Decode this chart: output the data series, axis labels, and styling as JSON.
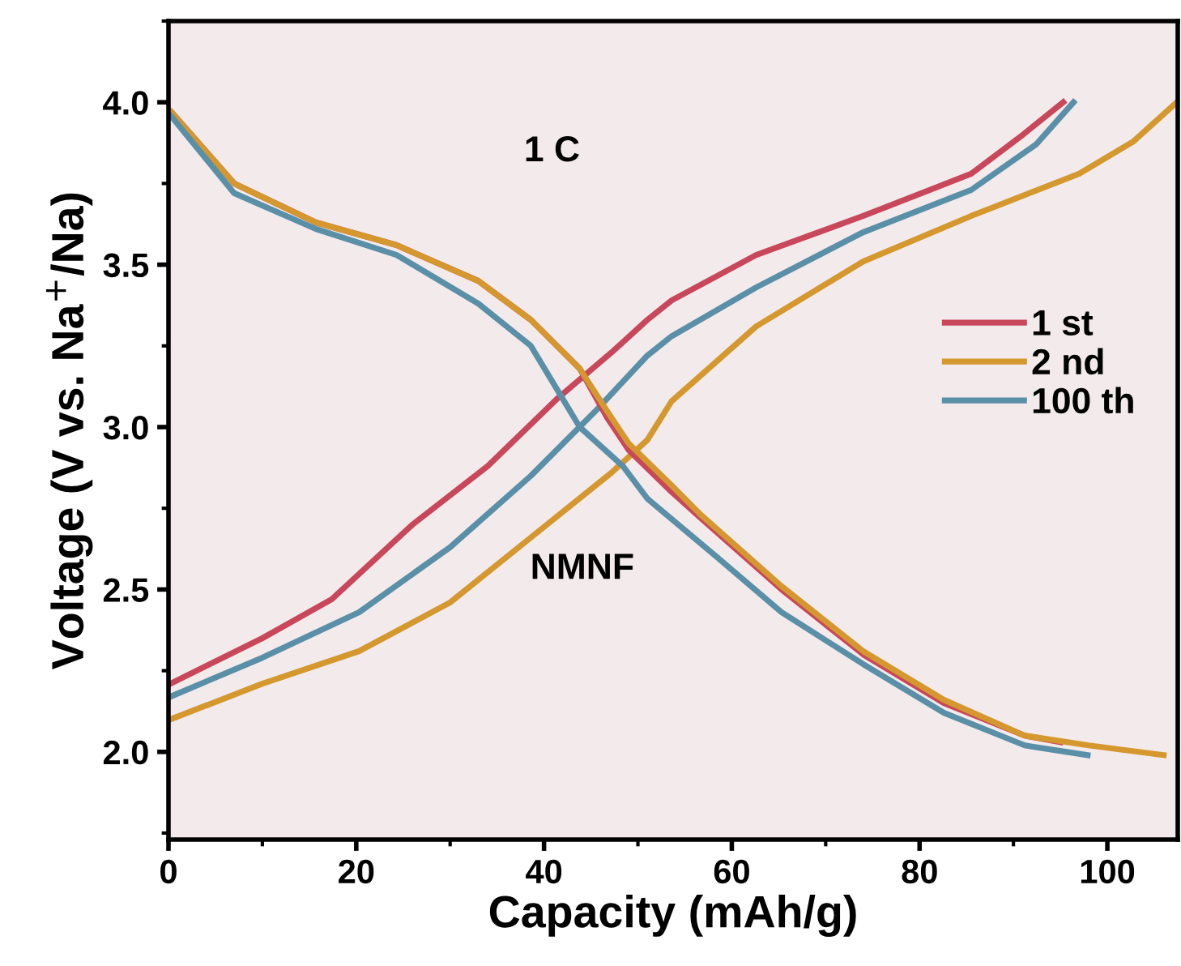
{
  "chart_data": {
    "type": "line",
    "xlabel": "Capacity (mAh/g)",
    "ylabel": "Voltage (V vs. Na$^{+}$/Na)",
    "xlim": [
      0,
      107.5
    ],
    "ylim": [
      1.73,
      4.25
    ],
    "xticks": [
      0,
      20,
      40,
      60,
      80,
      100
    ],
    "yticks": [
      {
        "value": 2.0,
        "label": "2.0"
      },
      {
        "value": 2.5,
        "label": "2.5"
      },
      {
        "value": 3.0,
        "label": "3.0"
      },
      {
        "value": 3.5,
        "label": "3.5"
      },
      {
        "value": 4.0,
        "label": "4.0"
      }
    ],
    "grid": false,
    "legend": "right",
    "line_style": "solid",
    "marker": "none",
    "annotations": [
      "1 C",
      "NMNF"
    ],
    "series": [
      {
        "name": "1 st",
        "color": "#c8475a",
        "x": [
          0.2,
          10,
          17.4,
          26,
          34,
          41.5,
          47.2,
          51,
          53.6,
          62.6,
          74,
          85.5,
          91,
          95.3
        ],
        "values": [
          2.21,
          2.35,
          2.47,
          2.7,
          2.88,
          3.09,
          3.23,
          3.33,
          3.39,
          3.53,
          3.65,
          3.78,
          3.9,
          4.0
        ]
      },
      {
        "name": "2 nd",
        "color": "#d4982f",
        "x": [
          0.2,
          10,
          20.3,
          30,
          38.6,
          47.2,
          51,
          53.6,
          62.6,
          74,
          85.5,
          97,
          102.8,
          107.4
        ],
        "values": [
          2.1,
          2.21,
          2.31,
          2.46,
          2.66,
          2.86,
          2.96,
          3.08,
          3.31,
          3.51,
          3.65,
          3.78,
          3.88,
          4.0
        ]
      },
      {
        "name": "100 th",
        "color": "#5a8fa8",
        "x": [
          0.2,
          10,
          20.3,
          30,
          38.6,
          45.5,
          51,
          53.6,
          62.6,
          74,
          85.5,
          92.4,
          96.4
        ],
        "values": [
          2.17,
          2.29,
          2.43,
          2.63,
          2.85,
          3.05,
          3.22,
          3.28,
          3.43,
          3.6,
          3.73,
          3.87,
          4.0
        ]
      },
      {
        "color": "#c8475a",
        "x": [
          0.3,
          7,
          15.7,
          24.3,
          33,
          38.6,
          43.8,
          46.7,
          49,
          53.6,
          56.7,
          65.3,
          74,
          82.6,
          91.2,
          95
        ],
        "values": [
          3.97,
          3.75,
          3.63,
          3.56,
          3.45,
          3.33,
          3.18,
          3.03,
          2.93,
          2.8,
          2.72,
          2.5,
          2.3,
          2.15,
          2.05,
          2.03
        ]
      },
      {
        "color": "#d4982f",
        "x": [
          0.3,
          7,
          15.7,
          24.3,
          33,
          38.6,
          43.8,
          46.7,
          49,
          53.6,
          56.7,
          65.3,
          74,
          82.6,
          91.2,
          98,
          106
        ],
        "values": [
          3.97,
          3.75,
          3.63,
          3.56,
          3.45,
          3.33,
          3.18,
          3.05,
          2.95,
          2.82,
          2.73,
          2.51,
          2.31,
          2.16,
          2.05,
          2.02,
          1.99
        ]
      },
      {
        "color": "#5a8fa8",
        "x": [
          0.2,
          7,
          15.7,
          24.3,
          33,
          38.6,
          43.8,
          48.4,
          51,
          58.4,
          65.3,
          74,
          82.6,
          91.2,
          97.9
        ],
        "values": [
          3.96,
          3.72,
          3.61,
          3.53,
          3.38,
          3.25,
          3.0,
          2.88,
          2.78,
          2.6,
          2.43,
          2.27,
          2.12,
          2.02,
          1.99
        ]
      }
    ]
  }
}
